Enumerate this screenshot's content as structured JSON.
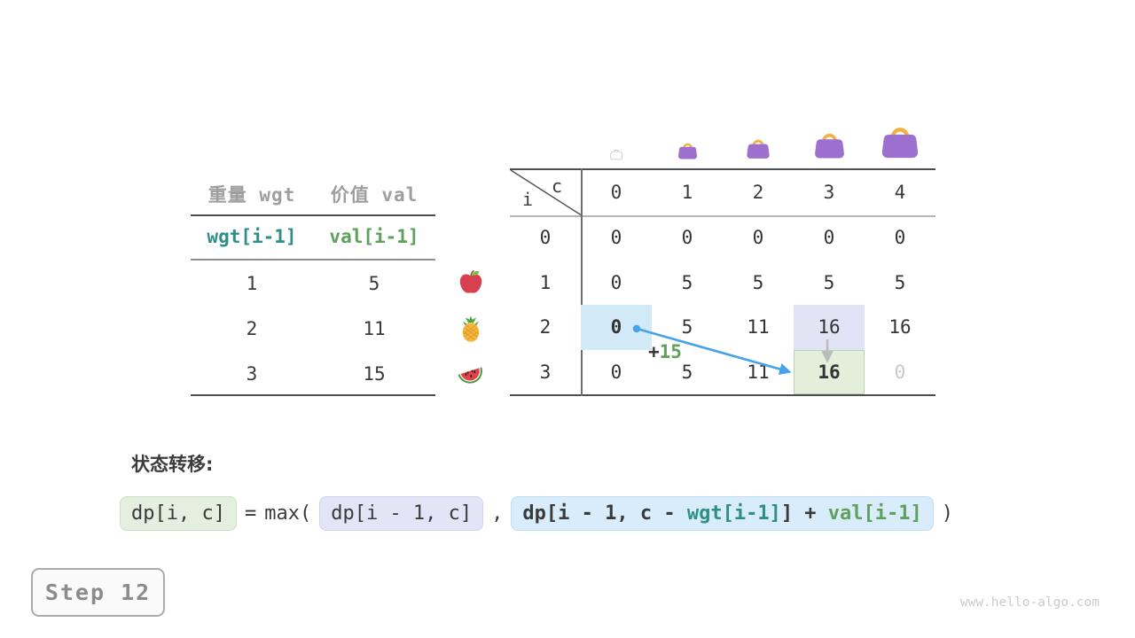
{
  "page": {
    "watermark": "www.hello-algo.com",
    "step_badge": "Step 12"
  },
  "items_table": {
    "headers": [
      "重量 wgt",
      "价值 val"
    ],
    "code_headers": [
      "wgt[i-1]",
      "val[i-1]"
    ],
    "rows": [
      {
        "item": "apple",
        "wgt": "1",
        "val": "5"
      },
      {
        "item": "pineapple",
        "wgt": "2",
        "val": "11"
      },
      {
        "item": "watermelon",
        "wgt": "3",
        "val": "15"
      }
    ]
  },
  "dp_table": {
    "corner": {
      "row_var": "i",
      "col_var": "c"
    },
    "col_labels": [
      "0",
      "1",
      "2",
      "3",
      "4"
    ],
    "bags": [
      {
        "capacity": "0",
        "style": "ghost"
      },
      {
        "capacity": "1",
        "style": "purple"
      },
      {
        "capacity": "2",
        "style": "purple"
      },
      {
        "capacity": "3",
        "style": "purple"
      },
      {
        "capacity": "4",
        "style": "purple"
      }
    ],
    "rows": [
      {
        "label": "0",
        "cells": [
          {
            "v": "0"
          },
          {
            "v": "0"
          },
          {
            "v": "0"
          },
          {
            "v": "0"
          },
          {
            "v": "0"
          }
        ]
      },
      {
        "label": "1",
        "cells": [
          {
            "v": "0"
          },
          {
            "v": "5"
          },
          {
            "v": "5"
          },
          {
            "v": "5"
          },
          {
            "v": "5"
          }
        ]
      },
      {
        "label": "2",
        "cells": [
          {
            "v": "0",
            "bold": true,
            "hl": "blue"
          },
          {
            "v": "5"
          },
          {
            "v": "11"
          },
          {
            "v": "16",
            "hl": "lavender"
          },
          {
            "v": "16"
          }
        ]
      },
      {
        "label": "3",
        "cells": [
          {
            "v": "0"
          },
          {
            "v": "5"
          },
          {
            "v": "11"
          },
          {
            "v": "16",
            "bold": true,
            "hl": "green"
          },
          {
            "v": "0",
            "faded": true
          }
        ]
      }
    ]
  },
  "annotation": {
    "plus": "+",
    "value": "15"
  },
  "transition": {
    "heading": "状态转移:",
    "lhs": "dp[i, c]",
    "eq": "=",
    "max_open": "max(",
    "arg1": "dp[i - 1, c]",
    "comma": ",",
    "arg2_parts": [
      {
        "text": "dp[i - 1, c - ",
        "color": "dark"
      },
      {
        "text": "wgt[i-1]",
        "color": "teal"
      },
      {
        "text": "] + ",
        "color": "dark"
      },
      {
        "text": "val[i-1]",
        "color": "green"
      }
    ],
    "close": ")"
  },
  "colors": {
    "teal": "#2e8f8a",
    "green": "#5fa15c",
    "arrow_blue": "#45a3ea",
    "gray_arrow": "#bbbbbb",
    "bag_purple": "#9d70cf",
    "bag_handle": "#f2b243",
    "hl_blue": "#d2e9f8",
    "hl_lavender": "#e2e4f6",
    "hl_green": "#e3eedb"
  }
}
